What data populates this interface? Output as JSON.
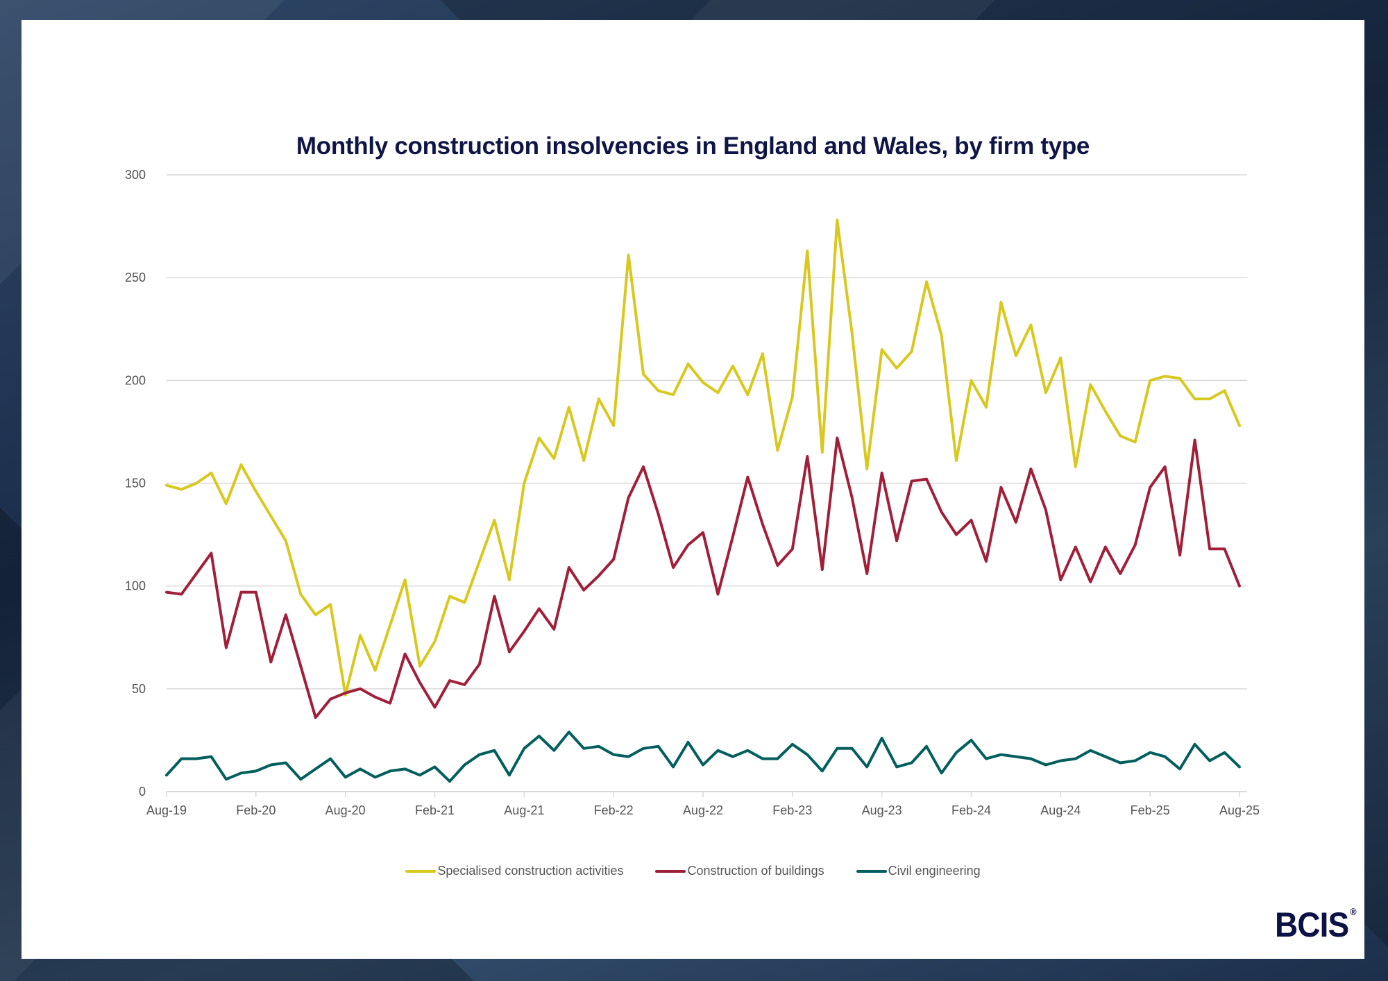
{
  "brand": {
    "logo_text": "BCIS",
    "registered_mark": "®"
  },
  "colors": {
    "title": "#0f1645",
    "specialised": "#d8c820",
    "buildings": "#a0203a",
    "civil": "#035e5e",
    "grid": "#d9d9d9",
    "logo": "#0c1245"
  },
  "chart_data": {
    "type": "line",
    "title": "Monthly construction insolvencies in England and Wales, by firm type",
    "xlabel": "",
    "ylabel": "",
    "ylim": [
      0,
      300
    ],
    "yticks": [
      0,
      50,
      100,
      150,
      200,
      250,
      300
    ],
    "grid": true,
    "legend_position": "bottom",
    "x_start": "Aug-19",
    "x_end": "Aug-25",
    "x_tick_labels": [
      "Aug-19",
      "Feb-20",
      "Aug-20",
      "Feb-21",
      "Aug-21",
      "Feb-22",
      "Aug-22",
      "Feb-23",
      "Aug-23",
      "Feb-24",
      "Aug-24",
      "Feb-25",
      "Aug-25"
    ],
    "x_tick_interval_months": 6,
    "series": [
      {
        "name": "Specialised construction activities",
        "color": "#d8c820",
        "values": [
          149,
          147,
          150,
          155,
          140,
          159,
          146,
          134,
          122,
          96,
          86,
          91,
          47,
          76,
          59,
          81,
          103,
          61,
          73,
          95,
          92,
          112,
          132,
          103,
          150,
          172,
          162,
          187,
          161,
          191,
          178,
          261,
          203,
          195,
          193,
          208,
          199,
          194,
          207,
          193,
          213,
          166,
          192,
          263,
          165,
          278,
          223,
          157,
          215,
          206,
          214,
          248,
          222,
          161,
          200,
          187,
          238,
          212,
          227,
          194,
          211,
          158,
          198,
          185,
          173,
          170,
          200,
          202,
          201,
          191,
          191,
          195,
          178
        ]
      },
      {
        "name": "Construction of buildings",
        "color": "#a0203a",
        "values": [
          97,
          96,
          106,
          116,
          70,
          97,
          97,
          63,
          86,
          61,
          36,
          45,
          48,
          50,
          46,
          43,
          67,
          53,
          41,
          54,
          52,
          62,
          95,
          68,
          78,
          89,
          79,
          109,
          98,
          105,
          113,
          143,
          158,
          135,
          109,
          120,
          126,
          96,
          124,
          153,
          130,
          110,
          118,
          163,
          108,
          172,
          143,
          106,
          155,
          122,
          151,
          152,
          136,
          125,
          132,
          112,
          148,
          131,
          157,
          137,
          103,
          119,
          102,
          119,
          106,
          120,
          148,
          158,
          115,
          171,
          118,
          118,
          100
        ]
      },
      {
        "name": "Civil engineering",
        "color": "#035e5e",
        "values": [
          8,
          16,
          16,
          17,
          6,
          9,
          10,
          13,
          14,
          6,
          11,
          16,
          7,
          11,
          7,
          10,
          11,
          8,
          12,
          5,
          13,
          18,
          20,
          8,
          21,
          27,
          20,
          29,
          21,
          22,
          18,
          17,
          21,
          22,
          12,
          24,
          13,
          20,
          17,
          20,
          16,
          16,
          23,
          18,
          10,
          21,
          21,
          12,
          26,
          12,
          14,
          22,
          9,
          19,
          25,
          16,
          18,
          17,
          16,
          13,
          15,
          16,
          20,
          17,
          14,
          15,
          19,
          17,
          11,
          23,
          15,
          19,
          12
        ]
      }
    ]
  }
}
